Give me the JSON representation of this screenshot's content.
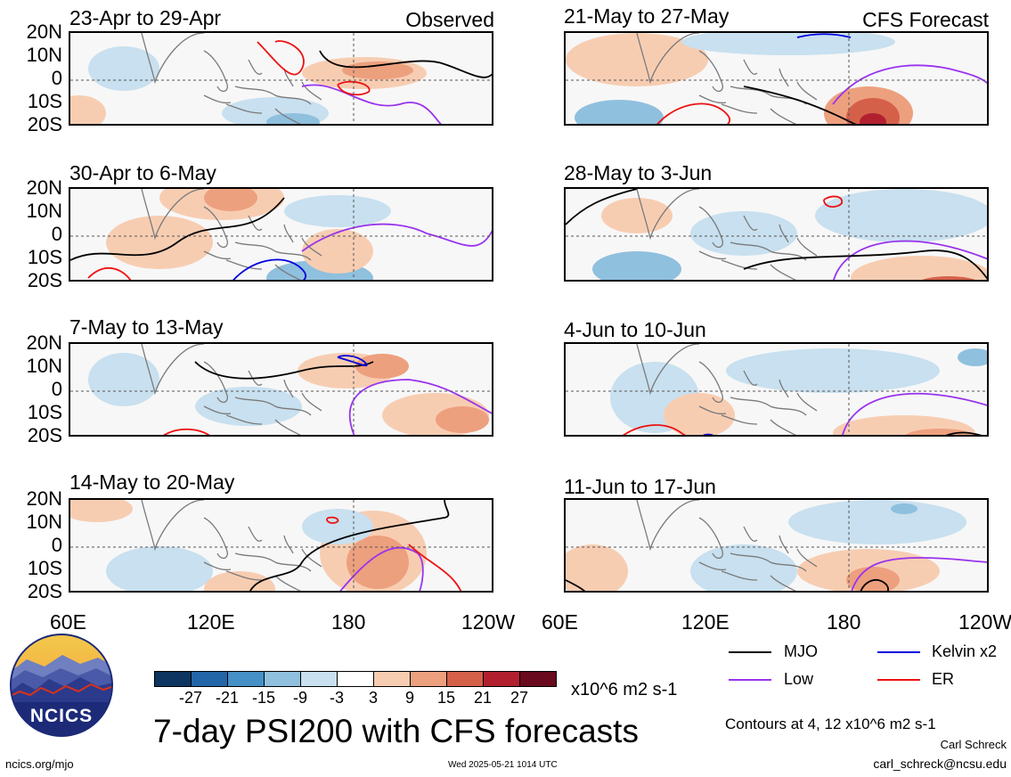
{
  "title": "7-day PSI200 with CFS forecasts",
  "column_labels": {
    "observed": "Observed",
    "forecast": "CFS Forecast"
  },
  "lat_labels": [
    "20N",
    "10N",
    "0",
    "10S",
    "20S"
  ],
  "lon_labels": [
    "60E",
    "120E",
    "180",
    "120W"
  ],
  "panels": {
    "left": [
      "23-Apr to 29-Apr",
      "30-Apr to 6-May",
      "7-May to 13-May",
      "14-May to 20-May"
    ],
    "right": [
      "21-May to 27-May",
      "28-May to 3-Jun",
      "4-Jun to 10-Jun",
      "11-Jun to 17-Jun"
    ]
  },
  "colorbar": {
    "labels": [
      "-27",
      "-21",
      "-15",
      "-9",
      "-3",
      "3",
      "9",
      "15",
      "21",
      "27"
    ],
    "colors": [
      "#0d3560",
      "#2366a8",
      "#4590c6",
      "#8fc0de",
      "#c8e0ef",
      "#ffffff",
      "#f7cdb2",
      "#eda07e",
      "#d5604a",
      "#b22030",
      "#6a0a1e"
    ],
    "units": "x10^6 m2 s-1"
  },
  "legend": [
    {
      "label": "MJO",
      "color": "#000000"
    },
    {
      "label": "Kelvin x2",
      "color": "#0000dd"
    },
    {
      "label": "Low",
      "color": "#9933ee"
    },
    {
      "label": "ER",
      "color": "#ee1111"
    }
  ],
  "contours_note": "Contours at 4, 12 x10^6 m2 s-1",
  "author": "Carl Schreck",
  "email": "carl_schreck@ncsu.edu",
  "site": "ncics.org/mjo",
  "timestamp": "Wed 2025-05-21 1014 UTC",
  "logo_text": "NCICS"
}
